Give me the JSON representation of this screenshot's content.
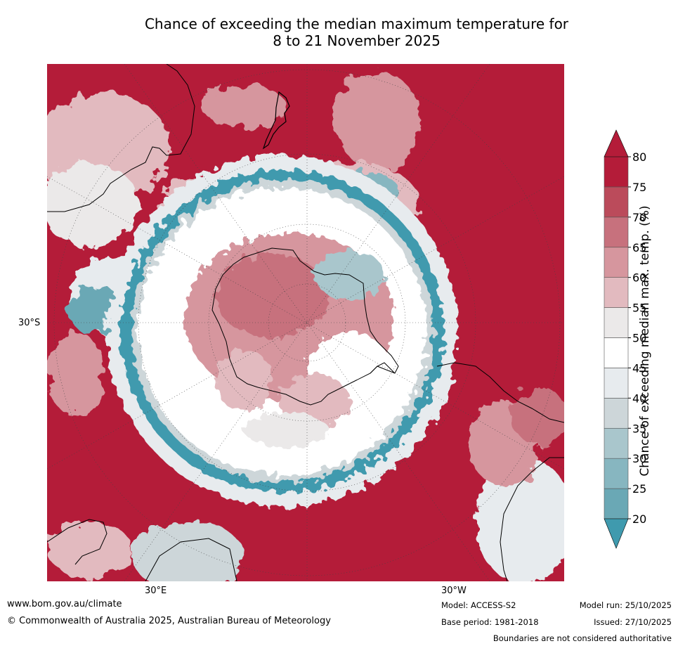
{
  "title_line1": "Chance of exceeding the median maximum temperature for",
  "title_line2": "8 to 21 November 2025",
  "map": {
    "lat_label": "30°S",
    "lon_left": "30°E",
    "lon_right": "30°W"
  },
  "colorbar": {
    "title": "Chance of exceeding median max. temp. (%)",
    "ticks": [
      "20",
      "25",
      "30",
      "35",
      "40",
      "45",
      "50",
      "55",
      "60",
      "65",
      "70",
      "75",
      "80"
    ],
    "colors": [
      "#3f9aae",
      "#6aa8b5",
      "#87b6c0",
      "#a9c6cc",
      "#cdd6d9",
      "#e7ebee",
      "#ffffff",
      "#ebe9e9",
      "#e2babf",
      "#d6969e",
      "#c7717d",
      "#bb4b5b",
      "#b41c39"
    ]
  },
  "footer": {
    "website": "www.bom.gov.au/climate",
    "copyright": "© Commonwealth of Australia 2025, Australian Bureau of Meteorology",
    "model": "Model: ACCESS-S2",
    "base_period": "Base period: 1981-2018",
    "model_run": "Model run: 25/10/2025",
    "issued": "Issued: 27/10/2025",
    "disclaimer": "Boundaries are not considered authoritative"
  }
}
